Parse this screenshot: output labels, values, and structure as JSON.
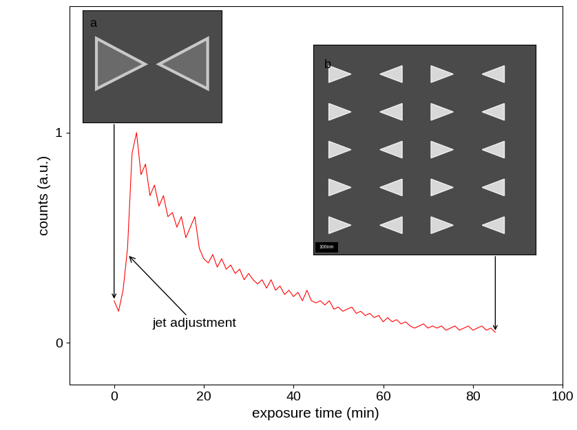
{
  "chart_data": {
    "type": "line",
    "x_label": "exposure time (min)",
    "y_label": "counts (a.u.)",
    "color": "#ff0000",
    "xlim": [
      -10,
      100
    ],
    "xticks": [
      0,
      20,
      40,
      60,
      80,
      100
    ],
    "ylim": [
      -0.2,
      1.6
    ],
    "yticks": [
      0,
      1
    ],
    "x": [
      0,
      1,
      2,
      3,
      4,
      5,
      6,
      7,
      8,
      9,
      10,
      11,
      12,
      13,
      14,
      15,
      16,
      17,
      18,
      19,
      20,
      21,
      22,
      23,
      24,
      25,
      26,
      27,
      28,
      29,
      30,
      31,
      32,
      33,
      34,
      35,
      36,
      37,
      38,
      39,
      40,
      41,
      42,
      43,
      44,
      45,
      46,
      47,
      48,
      49,
      50,
      51,
      52,
      53,
      54,
      55,
      56,
      57,
      58,
      59,
      60,
      61,
      62,
      63,
      64,
      65,
      66,
      67,
      68,
      69,
      70,
      71,
      72,
      73,
      74,
      75,
      76,
      77,
      78,
      79,
      80,
      81,
      82,
      83,
      84,
      85
    ],
    "values": [
      0.2,
      0.15,
      0.25,
      0.45,
      0.9,
      1.0,
      0.8,
      0.85,
      0.7,
      0.75,
      0.65,
      0.7,
      0.6,
      0.62,
      0.55,
      0.6,
      0.5,
      0.55,
      0.6,
      0.45,
      0.4,
      0.38,
      0.42,
      0.36,
      0.4,
      0.35,
      0.37,
      0.33,
      0.35,
      0.3,
      0.33,
      0.3,
      0.28,
      0.3,
      0.26,
      0.3,
      0.25,
      0.27,
      0.23,
      0.25,
      0.22,
      0.24,
      0.2,
      0.25,
      0.2,
      0.19,
      0.2,
      0.18,
      0.2,
      0.16,
      0.17,
      0.15,
      0.16,
      0.17,
      0.14,
      0.15,
      0.13,
      0.14,
      0.12,
      0.13,
      0.1,
      0.12,
      0.1,
      0.11,
      0.09,
      0.1,
      0.08,
      0.07,
      0.08,
      0.09,
      0.07,
      0.08,
      0.07,
      0.08,
      0.06,
      0.07,
      0.08,
      0.06,
      0.07,
      0.08,
      0.06,
      0.07,
      0.08,
      0.06,
      0.07,
      0.05
    ],
    "annotations": [
      {
        "text": "jet adjustment",
        "x": 3,
        "y": 0.42,
        "text_x": 18,
        "text_y": 0.09
      }
    ],
    "insets": [
      {
        "label": "a",
        "x": 0,
        "y": 0.2
      },
      {
        "label": "b",
        "scale_bar": "100nm",
        "x": 85,
        "y": 0.05
      }
    ]
  }
}
